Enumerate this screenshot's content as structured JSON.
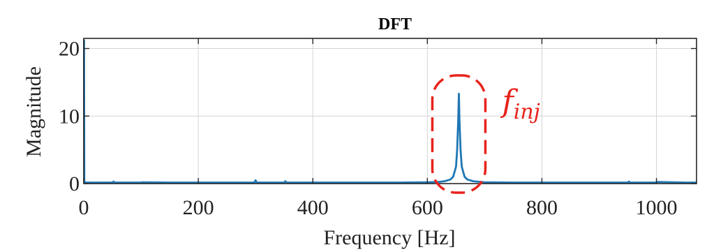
{
  "chart_data": {
    "type": "line",
    "title": "DFT",
    "xlabel": "Frequency [Hz]",
    "ylabel": "Magnitude",
    "xlim": [
      0,
      1070
    ],
    "ylim": [
      0,
      21.5
    ],
    "x_ticks": [
      0,
      200,
      400,
      600,
      800,
      1000
    ],
    "y_ticks": [
      0,
      10,
      20
    ],
    "x_tick_labels": [
      "0",
      "200",
      "400",
      "600",
      "800",
      "1000"
    ],
    "y_tick_labels": [
      "0",
      "10",
      "20"
    ],
    "grid": true,
    "series": [
      {
        "color": "#1f77b4",
        "x": [
          0,
          0.5,
          1,
          3,
          50,
          52,
          54,
          100,
          102,
          150,
          200,
          250,
          298,
          300,
          302,
          350,
          352,
          354,
          400,
          450,
          500,
          550,
          600,
          620,
          630,
          640,
          645,
          650,
          652,
          654,
          655,
          656,
          658,
          660,
          665,
          670,
          680,
          700,
          750,
          800,
          850,
          900,
          950,
          952,
          954,
          1000,
          1002,
          1050,
          1070
        ],
        "y": [
          21.2,
          21.2,
          0.3,
          0.15,
          0.15,
          0.3,
          0.15,
          0.15,
          0.2,
          0.15,
          0.15,
          0.15,
          0.15,
          0.5,
          0.15,
          0.15,
          0.35,
          0.15,
          0.15,
          0.15,
          0.15,
          0.15,
          0.2,
          0.25,
          0.35,
          0.6,
          1.0,
          2.5,
          5.0,
          9.5,
          13.3,
          9.5,
          5.0,
          2.5,
          1.0,
          0.6,
          0.35,
          0.2,
          0.15,
          0.15,
          0.15,
          0.15,
          0.15,
          0.3,
          0.15,
          0.15,
          0.25,
          0.15,
          0.15
        ]
      }
    ],
    "annotation": {
      "label": "f_inj",
      "label_main": "f",
      "label_sub": "inj",
      "color": "#e8231c",
      "shape": "dashed-rounded-box",
      "center_frequency": 655
    }
  }
}
